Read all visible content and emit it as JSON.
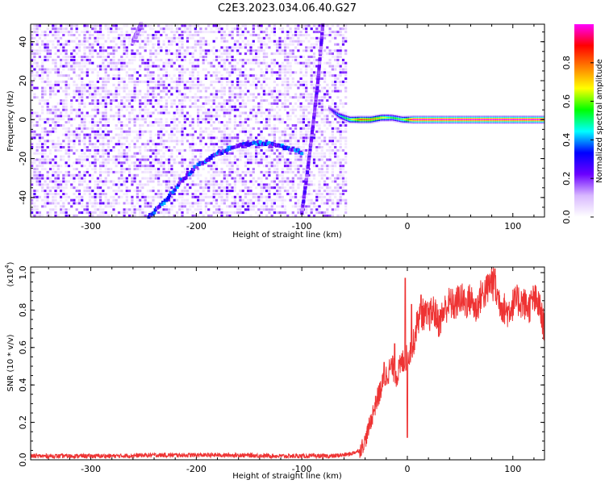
{
  "figure": {
    "title": "C2E3.2023.034.06.40.G27"
  },
  "chart_data": [
    {
      "type": "heatmap",
      "xlabel": "Height of straight line (km)",
      "ylabel": "Frequency (Hz)",
      "xlim": [
        -357,
        130
      ],
      "ylim": [
        -50,
        49
      ],
      "xticks": [
        -300,
        -200,
        -100,
        0,
        100
      ],
      "yticks": [
        -40,
        -20,
        0,
        20,
        40
      ],
      "grid": false,
      "colorbar": {
        "label": "Normalized spectral amplitude",
        "range": [
          0.0,
          1.0
        ],
        "ticks": [
          0.0,
          0.2,
          0.4,
          0.6,
          0.8
        ],
        "colormap": [
          "#ffffff",
          "#d8b8ff",
          "#6b00ff",
          "#0000ff",
          "#00ffff",
          "#00ff00",
          "#ffff00",
          "#ff7f00",
          "#ff0000",
          "#ff00ff"
        ]
      },
      "noise_region_x": [
        -357,
        -57
      ],
      "ridges": [
        {
          "x": [
            -245,
            -230,
            -215,
            -200,
            -185,
            -170,
            -155,
            -140,
            -125,
            -110,
            -100
          ],
          "y": [
            -50,
            -42,
            -32,
            -24,
            -19,
            -15,
            -13,
            -12,
            -13,
            -15,
            -17
          ],
          "amplitude": 0.3
        },
        {
          "x": [
            -260,
            -252
          ],
          "y": [
            40,
            49
          ],
          "amplitude": 0.15
        },
        {
          "x": [
            -100,
            -95,
            -90,
            -85,
            -80
          ],
          "y": [
            -48,
            -28,
            -6,
            18,
            49
          ],
          "amplitude": 0.2
        }
      ],
      "carrier": {
        "x": [
          -75,
          -65,
          -55,
          -45,
          -35,
          -25,
          -15,
          -5,
          5,
          130
        ],
        "y": [
          6,
          2,
          0,
          0,
          0,
          1,
          1,
          0,
          0,
          0
        ],
        "amplitude": [
          0.2,
          0.45,
          0.6,
          0.85,
          0.8,
          0.7,
          0.55,
          0.6,
          1.0,
          1.0
        ]
      }
    },
    {
      "type": "line",
      "xlabel": "Height of straight line (km)",
      "ylabel": "SNR (10 * v/v)",
      "yscale_label": "(x10",
      "yscale_exponent": "4",
      "yscale_suffix": ")",
      "xlim": [
        -357,
        130
      ],
      "ylim": [
        0.0,
        1.03
      ],
      "xticks": [
        -300,
        -200,
        -100,
        0,
        100
      ],
      "yticks": [
        0.0,
        0.2,
        0.4,
        0.6,
        0.8,
        1.0
      ],
      "grid": false,
      "color": "#ee3333",
      "series": [
        {
          "x": [
            -357,
            -320,
            -280,
            -240,
            -200,
            -160,
            -120,
            -90,
            -70,
            -55,
            -45,
            -40,
            -35,
            -30,
            -25,
            -20,
            -15,
            -10,
            -5,
            0,
            5,
            10,
            15,
            20,
            25,
            30,
            35,
            40,
            45,
            50,
            55,
            60,
            65,
            70,
            75,
            80,
            85,
            90,
            95,
            100,
            105,
            110,
            115,
            120,
            125,
            130
          ],
          "values": [
            0.02,
            0.02,
            0.02,
            0.025,
            0.025,
            0.025,
            0.02,
            0.02,
            0.02,
            0.03,
            0.05,
            0.1,
            0.2,
            0.3,
            0.38,
            0.45,
            0.5,
            0.45,
            0.52,
            0.55,
            0.6,
            0.75,
            0.78,
            0.76,
            0.8,
            0.73,
            0.8,
            0.84,
            0.82,
            0.87,
            0.83,
            0.86,
            0.8,
            0.88,
            0.9,
            0.96,
            0.88,
            0.82,
            0.79,
            0.83,
            0.85,
            0.84,
            0.81,
            0.86,
            0.82,
            0.7
          ]
        }
      ],
      "spikes": [
        {
          "x": -30,
          "y": 0.34
        },
        {
          "x": -22,
          "y": 0.52
        },
        {
          "x": -12,
          "y": 0.62
        },
        {
          "x": -2,
          "y": 0.97
        },
        {
          "x": 4,
          "y": 0.83
        },
        {
          "x": 13,
          "y": 0.88
        },
        {
          "x": 83,
          "y": 1.02
        },
        {
          "x": 0,
          "y": 0.12
        }
      ]
    }
  ]
}
